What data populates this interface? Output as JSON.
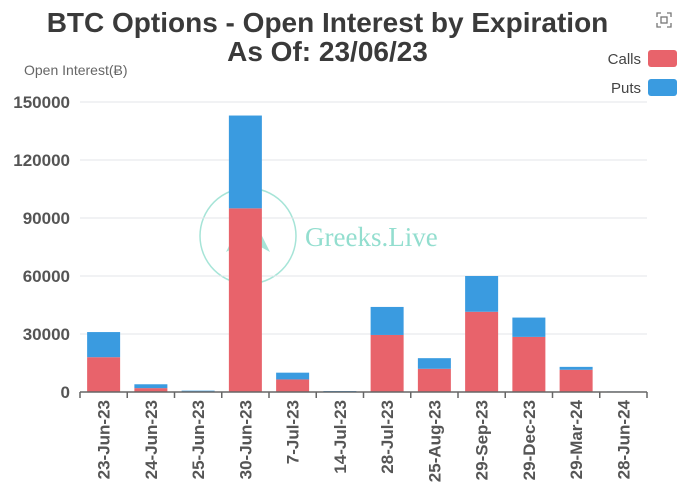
{
  "chart_data": {
    "type": "bar",
    "stacked": true,
    "title": "BTC Options - Open Interest by Expiration",
    "subtitle": "As Of: 23/06/23",
    "ylabel": "Open Interest(Ƀ)",
    "xlabel": "",
    "ylim": [
      0,
      150000
    ],
    "yticks": [
      "0",
      "30000",
      "60000",
      "90000",
      "120000",
      "150000"
    ],
    "categories": [
      "23-Jun-23",
      "24-Jun-23",
      "25-Jun-23",
      "30-Jun-23",
      "7-Jul-23",
      "14-Jul-23",
      "28-Jul-23",
      "25-Aug-23",
      "29-Sep-23",
      "29-Dec-23",
      "29-Mar-24",
      "28-Jun-24"
    ],
    "series": [
      {
        "name": "Calls",
        "color": "#e8636b",
        "values": [
          18000,
          2000,
          300,
          95000,
          6500,
          200,
          29500,
          12000,
          41500,
          28500,
          11500,
          200
        ]
      },
      {
        "name": "Puts",
        "color": "#3a9be0",
        "values": [
          13000,
          2000,
          400,
          48000,
          3500,
          300,
          14500,
          5500,
          18500,
          10000,
          1500,
          100
        ]
      }
    ],
    "grid": true,
    "legend_position": "top-right",
    "watermark": "Greeks.Live"
  },
  "toolbox": {
    "icon": "fullscreen-icon"
  }
}
